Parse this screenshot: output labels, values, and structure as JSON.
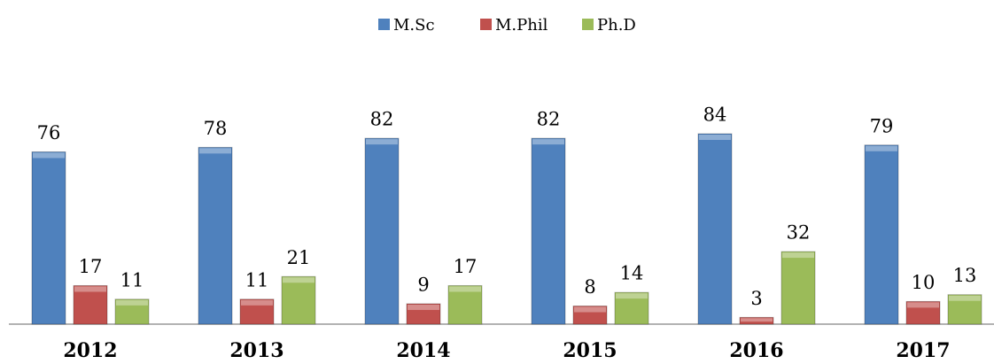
{
  "chart_data": {
    "type": "bar",
    "categories": [
      "2012",
      "2013",
      "2014",
      "2015",
      "2016",
      "2017"
    ],
    "series": [
      {
        "name": "M.Sc",
        "color": "#4f81bd",
        "values": [
          76,
          78,
          82,
          82,
          84,
          79
        ]
      },
      {
        "name": "M.Phil",
        "color": "#c0504d",
        "values": [
          17,
          11,
          9,
          8,
          3,
          10
        ]
      },
      {
        "name": "Ph.D",
        "color": "#9bbb59",
        "values": [
          11,
          21,
          17,
          14,
          32,
          13
        ]
      }
    ],
    "legend": "top"
  }
}
